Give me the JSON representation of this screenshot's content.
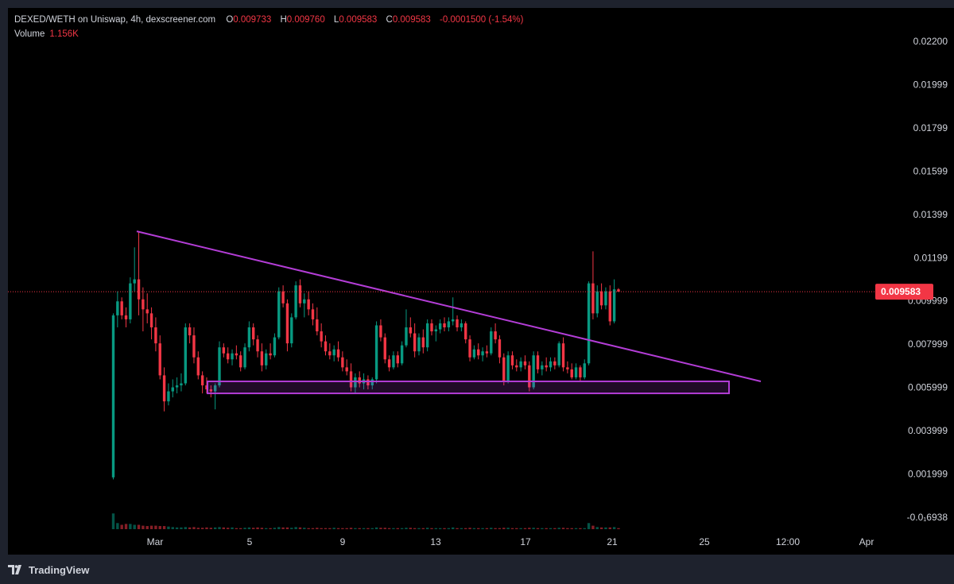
{
  "legend": {
    "title": "DEXED/WETH on Uniswap, 4h, dexscreener.com",
    "open_key": "O",
    "open": "0.009733",
    "high_key": "H",
    "high": "0.009760",
    "low_key": "L",
    "low": "0.009583",
    "close_key": "C",
    "close": "0.009583",
    "change": "-0.0001500 (-1.54%)",
    "volume_label": "Volume",
    "volume_value": "1.156K"
  },
  "footer": {
    "brand": "TradingView"
  },
  "colors": {
    "up": "#089981",
    "down": "#f23645",
    "pattern": "#b33dd6",
    "price_line": "#f23645"
  },
  "chart_data": {
    "type": "candlestick",
    "symbol": "DEXED/WETH",
    "exchange": "Uniswap",
    "interval": "4h",
    "ylim": [
      -0.0016938,
      0.0221
    ],
    "y_ticks": [
      "0.02200",
      "0.01999",
      "0.01799",
      "0.01599",
      "0.01399",
      "0.01199",
      "0.009999",
      "0.007999",
      "0.005999",
      "0.003999",
      "0.001999",
      "-0.0₁6938"
    ],
    "x_ticks": [
      "Mar",
      "5",
      "9",
      "13",
      "17",
      "21",
      "25",
      "12:00",
      "Apr"
    ],
    "last_price": 0.009583,
    "last_price_label": "0.009583",
    "grid": false,
    "candles": [
      [
        0.0003,
        0.0085,
        0.0002,
        0.0084
      ],
      [
        0.0084,
        0.0096,
        0.0078,
        0.0091
      ],
      [
        0.0091,
        0.0093,
        0.0082,
        0.0084
      ],
      [
        0.0084,
        0.0088,
        0.0078,
        0.0082
      ],
      [
        0.0082,
        0.0103,
        0.008,
        0.01
      ],
      [
        0.01,
        0.0118,
        0.0096,
        0.0102
      ],
      [
        0.0102,
        0.0126,
        0.0084,
        0.0092
      ],
      [
        0.0092,
        0.0098,
        0.0076,
        0.0087
      ],
      [
        0.0087,
        0.0095,
        0.008,
        0.0085
      ],
      [
        0.0085,
        0.0088,
        0.0072,
        0.0078
      ],
      [
        0.0078,
        0.0083,
        0.0066,
        0.007
      ],
      [
        0.007,
        0.0074,
        0.0052,
        0.0054
      ],
      [
        0.0054,
        0.0058,
        0.0036,
        0.0041
      ],
      [
        0.0041,
        0.005,
        0.0039,
        0.0046
      ],
      [
        0.0046,
        0.0052,
        0.0043,
        0.0048
      ],
      [
        0.0048,
        0.0053,
        0.0045,
        0.0049
      ],
      [
        0.0049,
        0.0055,
        0.0046,
        0.005
      ],
      [
        0.005,
        0.008,
        0.0049,
        0.0078
      ],
      [
        0.0078,
        0.008,
        0.007,
        0.0074
      ],
      [
        0.0074,
        0.0078,
        0.006,
        0.0063
      ],
      [
        0.0063,
        0.0066,
        0.0052,
        0.0054
      ],
      [
        0.0054,
        0.0056,
        0.0045,
        0.0049
      ],
      [
        0.0049,
        0.0053,
        0.0045,
        0.0047
      ],
      [
        0.0047,
        0.0049,
        0.0043,
        0.0046
      ],
      [
        0.0046,
        0.005,
        0.0037,
        0.0049
      ],
      [
        0.0049,
        0.0071,
        0.0048,
        0.0068
      ],
      [
        0.0068,
        0.007,
        0.0063,
        0.0065
      ],
      [
        0.0065,
        0.0068,
        0.006,
        0.0062
      ],
      [
        0.0062,
        0.0067,
        0.0059,
        0.0065
      ],
      [
        0.0065,
        0.0069,
        0.0062,
        0.0064
      ],
      [
        0.0064,
        0.0066,
        0.0056,
        0.0058
      ],
      [
        0.0058,
        0.007,
        0.0057,
        0.0068
      ],
      [
        0.0068,
        0.0081,
        0.0066,
        0.0078
      ],
      [
        0.0078,
        0.008,
        0.0069,
        0.0072
      ],
      [
        0.0072,
        0.0074,
        0.0063,
        0.0066
      ],
      [
        0.0066,
        0.007,
        0.0056,
        0.0059
      ],
      [
        0.0059,
        0.0067,
        0.0057,
        0.0065
      ],
      [
        0.0065,
        0.007,
        0.0062,
        0.0064
      ],
      [
        0.0064,
        0.0075,
        0.0063,
        0.0073
      ],
      [
        0.0073,
        0.0098,
        0.0072,
        0.0096
      ],
      [
        0.0096,
        0.0099,
        0.0088,
        0.009
      ],
      [
        0.009,
        0.0092,
        0.0066,
        0.007
      ],
      [
        0.007,
        0.0085,
        0.0068,
        0.0083
      ],
      [
        0.0083,
        0.0101,
        0.0082,
        0.0099
      ],
      [
        0.0099,
        0.0102,
        0.0088,
        0.009
      ],
      [
        0.009,
        0.0095,
        0.0083,
        0.0092
      ],
      [
        0.0092,
        0.0096,
        0.0084,
        0.0087
      ],
      [
        0.0087,
        0.009,
        0.0079,
        0.0082
      ],
      [
        0.0082,
        0.0088,
        0.0074,
        0.0076
      ],
      [
        0.0076,
        0.008,
        0.0068,
        0.0071
      ],
      [
        0.0071,
        0.0074,
        0.0064,
        0.0066
      ],
      [
        0.0066,
        0.007,
        0.0062,
        0.0064
      ],
      [
        0.0064,
        0.0069,
        0.0061,
        0.0067
      ],
      [
        0.0067,
        0.0071,
        0.0061,
        0.0063
      ],
      [
        0.0063,
        0.0066,
        0.0056,
        0.0058
      ],
      [
        0.0058,
        0.0062,
        0.0054,
        0.0056
      ],
      [
        0.0056,
        0.006,
        0.0046,
        0.0048
      ],
      [
        0.0048,
        0.0055,
        0.0045,
        0.0053
      ],
      [
        0.0053,
        0.0056,
        0.0048,
        0.005
      ],
      [
        0.005,
        0.0055,
        0.0047,
        0.0052
      ],
      [
        0.0052,
        0.0054,
        0.0047,
        0.0049
      ],
      [
        0.0049,
        0.0053,
        0.0047,
        0.0052
      ],
      [
        0.0052,
        0.0081,
        0.005,
        0.0079
      ],
      [
        0.0079,
        0.0082,
        0.0071,
        0.0073
      ],
      [
        0.0073,
        0.0075,
        0.006,
        0.0062
      ],
      [
        0.0062,
        0.0064,
        0.0056,
        0.0058
      ],
      [
        0.0058,
        0.0066,
        0.0057,
        0.0064
      ],
      [
        0.0064,
        0.0066,
        0.0058,
        0.006
      ],
      [
        0.006,
        0.0071,
        0.0059,
        0.0069
      ],
      [
        0.0069,
        0.0087,
        0.0068,
        0.0078
      ],
      [
        0.0078,
        0.0083,
        0.0073,
        0.0075
      ],
      [
        0.0075,
        0.008,
        0.0063,
        0.0066
      ],
      [
        0.0066,
        0.0075,
        0.0064,
        0.0073
      ],
      [
        0.0073,
        0.0077,
        0.0065,
        0.0068
      ],
      [
        0.0068,
        0.0082,
        0.0066,
        0.008
      ],
      [
        0.008,
        0.0082,
        0.0074,
        0.0076
      ],
      [
        0.0076,
        0.0079,
        0.0071,
        0.0077
      ],
      [
        0.0077,
        0.0082,
        0.0075,
        0.008
      ],
      [
        0.008,
        0.0083,
        0.0076,
        0.0078
      ],
      [
        0.0078,
        0.0083,
        0.0076,
        0.0081
      ],
      [
        0.0081,
        0.0093,
        0.0079,
        0.0082
      ],
      [
        0.0082,
        0.0084,
        0.0076,
        0.0078
      ],
      [
        0.0078,
        0.0082,
        0.0076,
        0.008
      ],
      [
        0.008,
        0.0081,
        0.007,
        0.0072
      ],
      [
        0.0072,
        0.0074,
        0.0061,
        0.0063
      ],
      [
        0.0063,
        0.0069,
        0.0062,
        0.0067
      ],
      [
        0.0067,
        0.007,
        0.0062,
        0.0064
      ],
      [
        0.0064,
        0.0068,
        0.0061,
        0.0066
      ],
      [
        0.0066,
        0.0069,
        0.0063,
        0.0065
      ],
      [
        0.0065,
        0.0078,
        0.0064,
        0.0076
      ],
      [
        0.0076,
        0.008,
        0.007,
        0.0072
      ],
      [
        0.0072,
        0.0074,
        0.006,
        0.0063
      ],
      [
        0.0063,
        0.0065,
        0.0049,
        0.0051
      ],
      [
        0.0051,
        0.0066,
        0.005,
        0.0064
      ],
      [
        0.0064,
        0.0066,
        0.0057,
        0.0059
      ],
      [
        0.0059,
        0.0062,
        0.0056,
        0.0058
      ],
      [
        0.0058,
        0.0063,
        0.0056,
        0.0061
      ],
      [
        0.0061,
        0.0064,
        0.0057,
        0.0059
      ],
      [
        0.0059,
        0.0061,
        0.0046,
        0.0048
      ],
      [
        0.0048,
        0.0066,
        0.0047,
        0.0064
      ],
      [
        0.0064,
        0.0066,
        0.0055,
        0.0057
      ],
      [
        0.0057,
        0.0061,
        0.0054,
        0.0059
      ],
      [
        0.0059,
        0.0063,
        0.0056,
        0.0058
      ],
      [
        0.0058,
        0.0063,
        0.0056,
        0.0061
      ],
      [
        0.0061,
        0.0063,
        0.0057,
        0.0059
      ],
      [
        0.0059,
        0.0071,
        0.0058,
        0.007
      ],
      [
        0.007,
        0.0073,
        0.0056,
        0.0058
      ],
      [
        0.0058,
        0.0061,
        0.0055,
        0.0057
      ],
      [
        0.0057,
        0.006,
        0.0052,
        0.0053
      ],
      [
        0.0053,
        0.006,
        0.0052,
        0.0058
      ],
      [
        0.0058,
        0.0059,
        0.0051,
        0.0053
      ],
      [
        0.0053,
        0.0062,
        0.0052,
        0.006
      ],
      [
        0.006,
        0.0101,
        0.0059,
        0.01
      ],
      [
        0.01,
        0.0116,
        0.0082,
        0.0085
      ],
      [
        0.0085,
        0.0099,
        0.0083,
        0.0096
      ],
      [
        0.0096,
        0.01,
        0.0087,
        0.0089
      ],
      [
        0.0089,
        0.0098,
        0.0087,
        0.0096
      ],
      [
        0.0096,
        0.0099,
        0.0079,
        0.0081
      ],
      [
        0.0081,
        0.0102,
        0.008,
        0.0097
      ],
      [
        0.0097,
        0.00976,
        0.00958,
        0.009583
      ]
    ],
    "volumes": [
      0.9,
      0.35,
      0.25,
      0.3,
      0.3,
      0.25,
      0.25,
      0.2,
      0.18,
      0.2,
      0.2,
      0.18,
      0.18,
      0.15,
      0.12,
      0.1,
      0.1,
      0.12,
      0.1,
      0.12,
      0.08,
      0.08,
      0.1,
      0.08,
      0.1,
      0.12,
      0.1,
      0.08,
      0.1,
      0.06,
      0.06,
      0.08,
      0.1,
      0.08,
      0.1,
      0.08,
      0.06,
      0.06,
      0.08,
      0.12,
      0.1,
      0.1,
      0.08,
      0.12,
      0.1,
      0.08,
      0.06,
      0.06,
      0.08,
      0.06,
      0.06,
      0.06,
      0.08,
      0.06,
      0.06,
      0.06,
      0.08,
      0.06,
      0.06,
      0.06,
      0.06,
      0.06,
      0.1,
      0.08,
      0.08,
      0.06,
      0.06,
      0.06,
      0.06,
      0.08,
      0.08,
      0.06,
      0.06,
      0.06,
      0.08,
      0.06,
      0.06,
      0.06,
      0.06,
      0.06,
      0.1,
      0.06,
      0.06,
      0.06,
      0.08,
      0.06,
      0.06,
      0.06,
      0.06,
      0.08,
      0.06,
      0.06,
      0.08,
      0.08,
      0.06,
      0.06,
      0.06,
      0.06,
      0.08,
      0.08,
      0.06,
      0.06,
      0.06,
      0.06,
      0.06,
      0.08,
      0.08,
      0.06,
      0.06,
      0.06,
      0.06,
      0.06,
      0.35,
      0.2,
      0.12,
      0.1,
      0.1,
      0.1,
      0.12,
      0.06
    ],
    "drawings": {
      "trendline": {
        "from": [
          "Feb 28 12:00",
          0.0126
        ],
        "to": [
          "Mar 29 04:00",
          0.0051
        ]
      },
      "support_zone": {
        "from": "Mar 3",
        "to": "Mar 26 12:00",
        "top": 0.0051,
        "bottom": 0.0045
      }
    }
  }
}
